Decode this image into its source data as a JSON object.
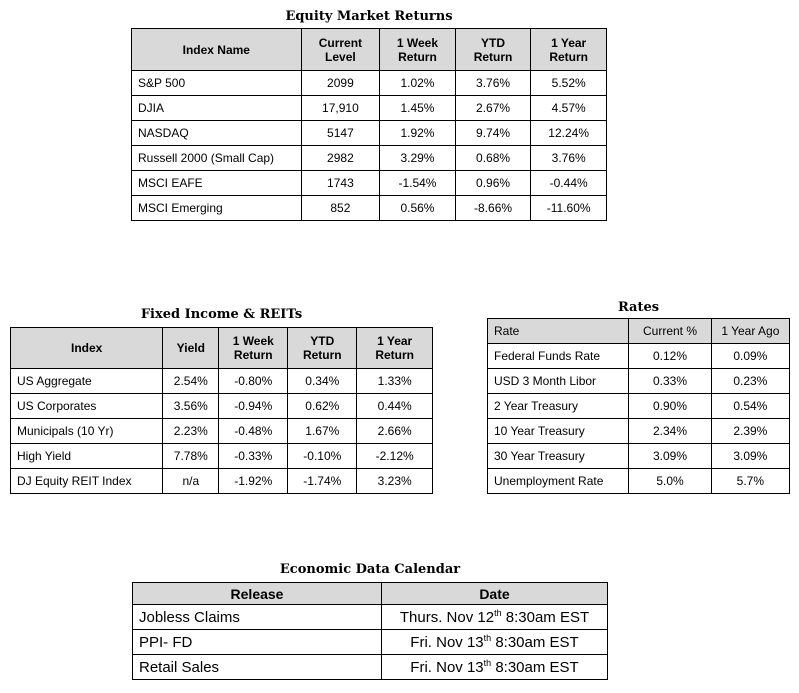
{
  "equity": {
    "title": "Equity Market Returns",
    "headers": [
      "Index Name",
      "Current Level",
      "1 Week Return",
      "YTD Return",
      "1 Year Return"
    ],
    "rows": [
      [
        "S&P 500",
        "2099",
        "1.02%",
        "3.76%",
        "5.52%"
      ],
      [
        "DJIA",
        "17,910",
        "1.45%",
        "2.67%",
        "4.57%"
      ],
      [
        "NASDAQ",
        "5147",
        "1.92%",
        "9.74%",
        "12.24%"
      ],
      [
        "Russell 2000 (Small Cap)",
        "2982",
        "3.29%",
        "0.68%",
        "3.76%"
      ],
      [
        "MSCI EAFE",
        "1743",
        "-1.54%",
        "0.96%",
        "-0.44%"
      ],
      [
        "MSCI Emerging",
        "852",
        "0.56%",
        "-8.66%",
        "-11.60%"
      ]
    ]
  },
  "fixed": {
    "title": "Fixed Income & REITs",
    "headers": [
      "Index",
      "Yield",
      "1 Week Return",
      "YTD Return",
      "1 Year Return"
    ],
    "rows": [
      [
        "US Aggregate",
        "2.54%",
        "-0.80%",
        "0.34%",
        "1.33%"
      ],
      [
        "US Corporates",
        "3.56%",
        "-0.94%",
        "0.62%",
        "0.44%"
      ],
      [
        "Municipals (10 Yr)",
        "2.23%",
        "-0.48%",
        "1.67%",
        "2.66%"
      ],
      [
        "High Yield",
        "7.78%",
        "-0.33%",
        "-0.10%",
        "-2.12%"
      ],
      [
        "DJ Equity REIT Index",
        "n/a",
        "-1.92%",
        "-1.74%",
        "3.23%"
      ]
    ]
  },
  "rates": {
    "title": "Rates",
    "headers": [
      "Rate",
      "Current %",
      "1 Year Ago"
    ],
    "rows": [
      [
        "Federal Funds Rate",
        "0.12%",
        "0.09%"
      ],
      [
        "USD 3 Month Libor",
        "0.33%",
        "0.23%"
      ],
      [
        "2 Year Treasury",
        "0.90%",
        "0.54%"
      ],
      [
        "10 Year Treasury",
        "2.34%",
        "2.39%"
      ],
      [
        "30 Year Treasury",
        "3.09%",
        "3.09%"
      ],
      [
        "Unemployment Rate",
        "5.0%",
        "5.7%"
      ]
    ]
  },
  "calendar": {
    "title": "Economic Data Calendar",
    "headers": [
      "Release",
      "Date"
    ],
    "rows": [
      {
        "release": "Jobless Claims",
        "date_pre": "Thurs. Nov 12",
        "date_sup": "th",
        "date_post": " 8:30am EST"
      },
      {
        "release": "PPI- FD",
        "date_pre": "Fri. Nov 13",
        "date_sup": "th",
        "date_post": " 8:30am EST"
      },
      {
        "release": "Retail Sales",
        "date_pre": "Fri. Nov 13",
        "date_sup": "th",
        "date_post": " 8:30am EST"
      }
    ]
  }
}
